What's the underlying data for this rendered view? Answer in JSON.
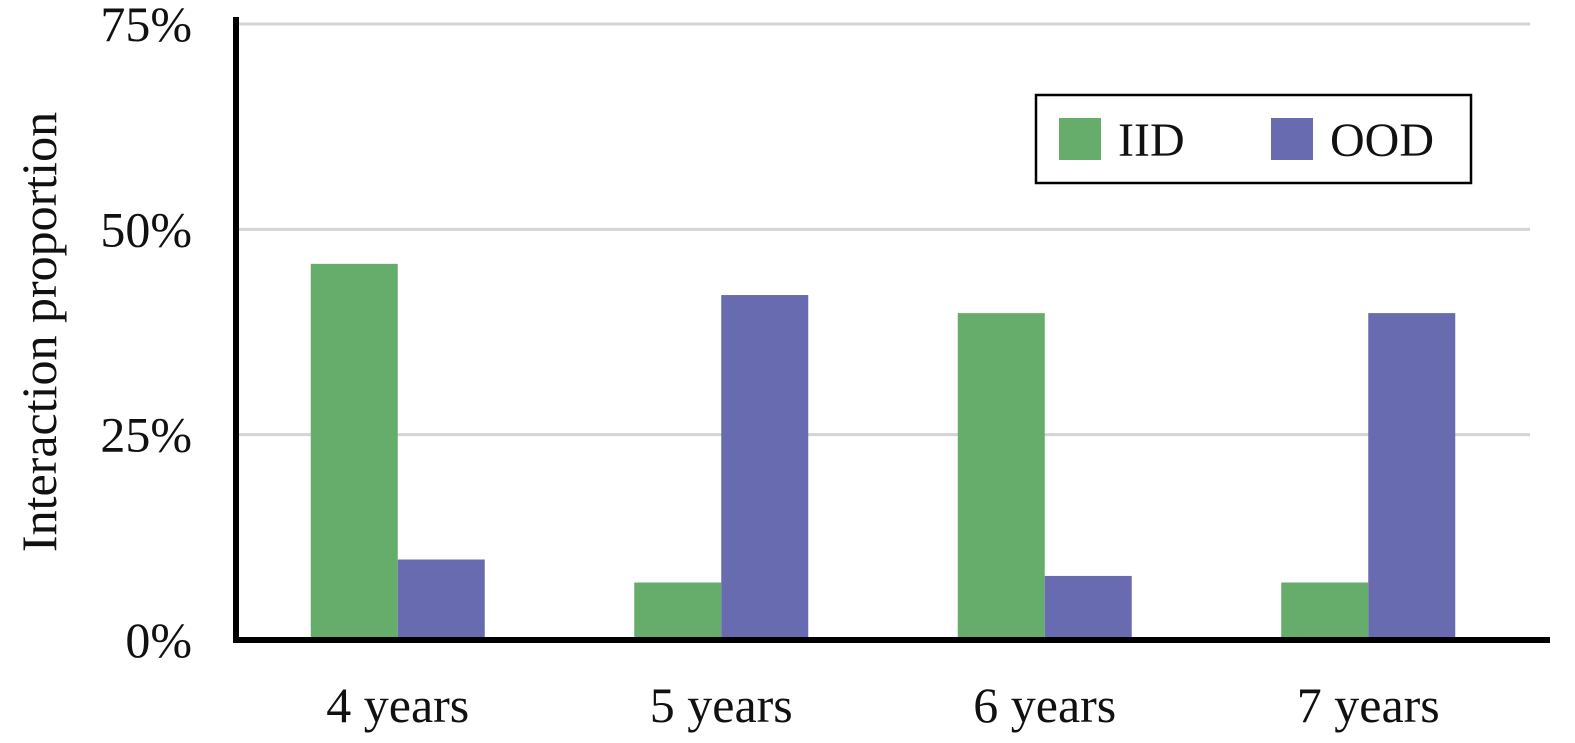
{
  "chart_data": {
    "type": "bar",
    "categories": [
      "4 years",
      "5 years",
      "6 years",
      "7 years"
    ],
    "series": [
      {
        "name": "IID",
        "color": "#66ad6c",
        "values": [
          45.8,
          7.0,
          39.8,
          7.0
        ]
      },
      {
        "name": "OOD",
        "color": "#696bb0",
        "values": [
          9.8,
          42.0,
          7.8,
          39.8
        ]
      }
    ],
    "ylabel": "Interaction proportion",
    "xlabel": "",
    "ylim": [
      0,
      75
    ],
    "yticks": [
      0,
      25,
      50,
      75
    ],
    "ytick_labels": [
      "0%",
      "25%",
      "50%",
      "75%"
    ],
    "grid": true,
    "legend_position": "top-right"
  }
}
